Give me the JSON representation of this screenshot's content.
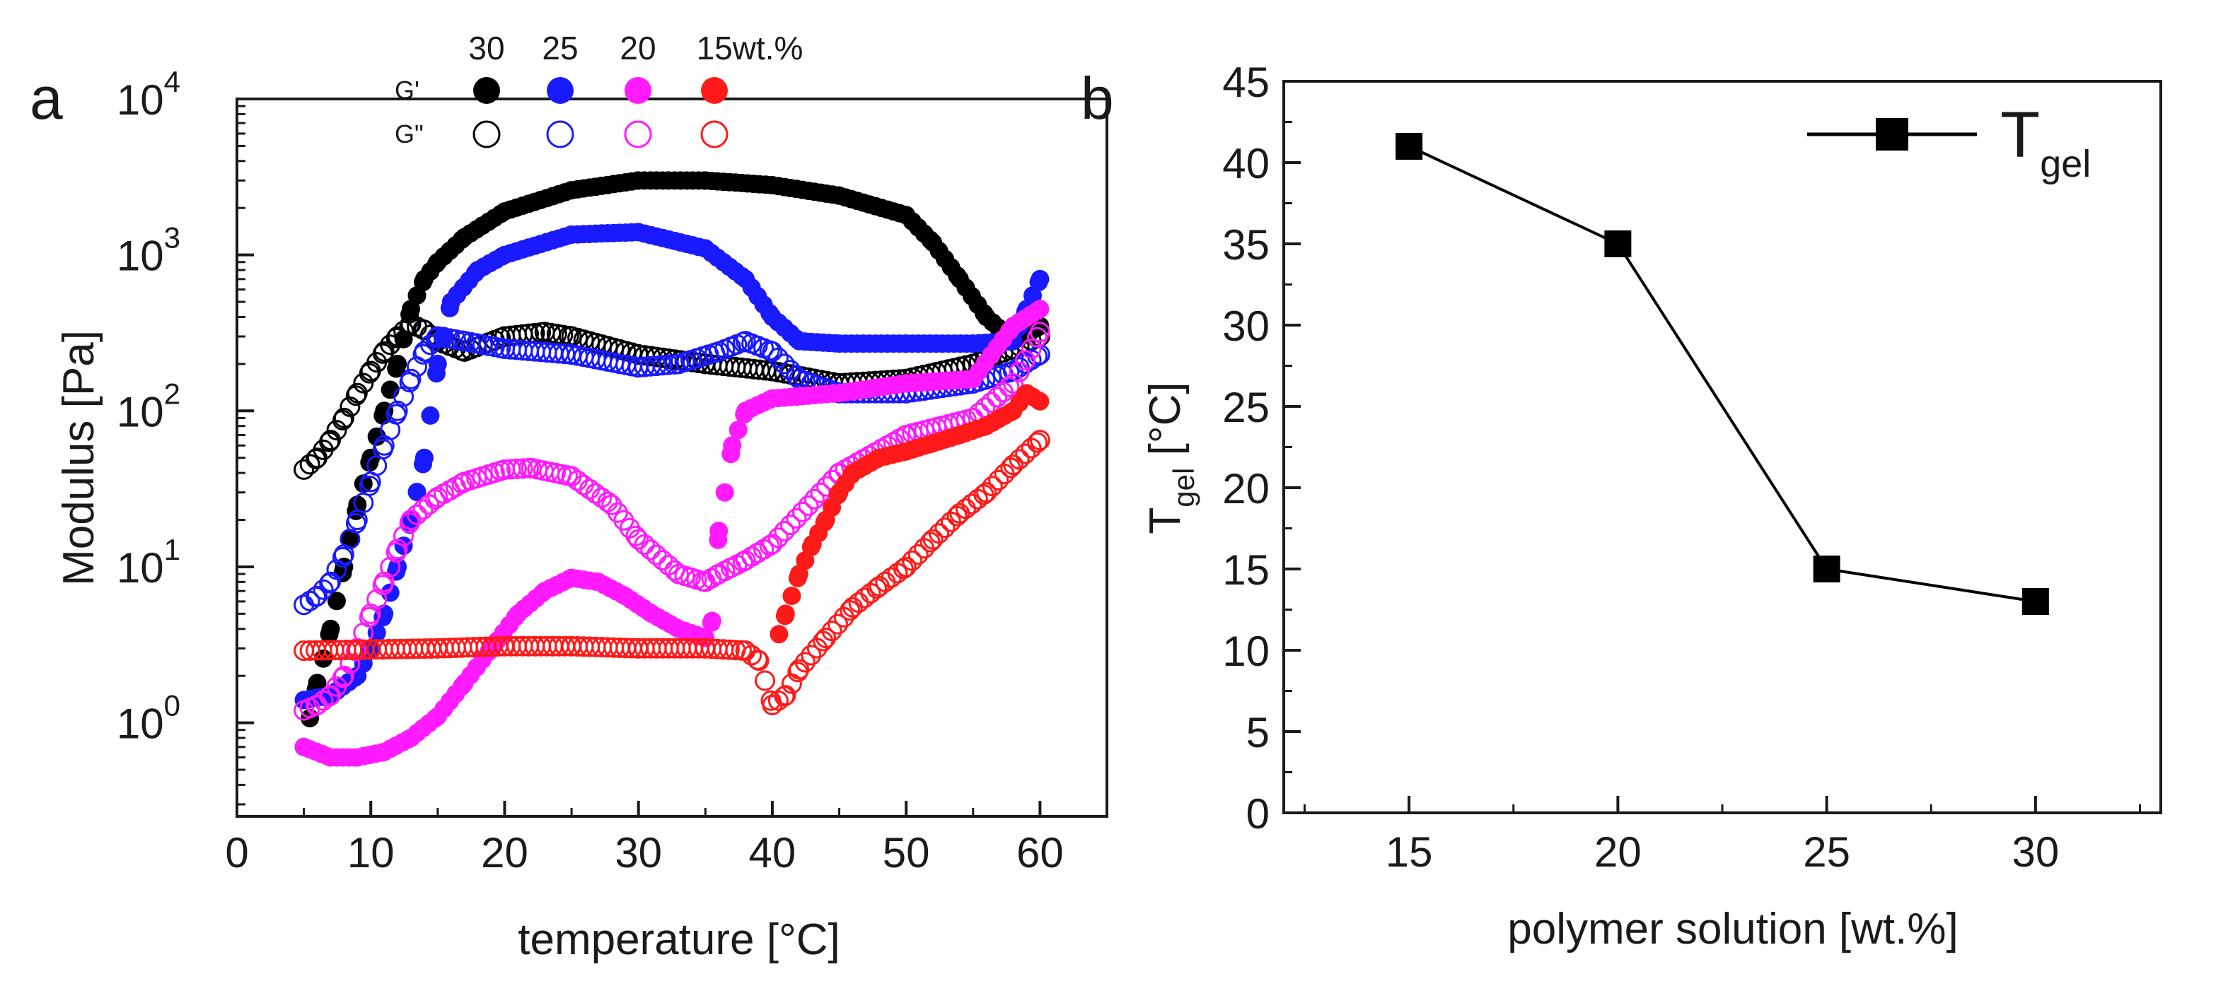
{
  "chart_data": [
    {
      "panel_label": "a",
      "type": "scatter",
      "xlabel": "temperature [°C]",
      "ylabel": "Modulus [Pa]",
      "xlim": [
        0,
        65
      ],
      "ylim_log10": [
        -0.6,
        4
      ],
      "xticks": [
        "0",
        "10",
        "20",
        "30",
        "40",
        "50",
        "60"
      ],
      "xtick_values": [
        0,
        10,
        20,
        30,
        40,
        50,
        60
      ],
      "yticks": [
        {
          "base": "10",
          "exp": "0",
          "value": 1
        },
        {
          "base": "10",
          "exp": "1",
          "value": 10
        },
        {
          "base": "10",
          "exp": "2",
          "value": 100
        },
        {
          "base": "10",
          "exp": "3",
          "value": 1000
        },
        {
          "base": "10",
          "exp": "4",
          "value": 10000
        }
      ],
      "legend": {
        "concentrations": [
          "30",
          "25",
          "20",
          "15wt.%"
        ],
        "rows": [
          "G'",
          "G\""
        ],
        "colors": [
          "#000000",
          "#1a1aff",
          "#ff1aff",
          "#ff1a1a"
        ]
      },
      "series": [
        {
          "name": "G' 30 wt.%",
          "color": "#000000",
          "filled": true,
          "x": [
            5,
            6,
            7,
            8,
            9,
            10,
            11,
            12,
            13,
            14,
            15,
            17,
            20,
            25,
            30,
            35,
            40,
            45,
            50,
            52,
            54,
            56,
            58,
            60
          ],
          "y": [
            0.7,
            1.8,
            4,
            10,
            25,
            50,
            100,
            200,
            450,
            700,
            900,
            1300,
            1900,
            2600,
            3000,
            3000,
            2800,
            2400,
            1800,
            1200,
            700,
            400,
            280,
            350
          ]
        },
        {
          "name": "G\" 30 wt.%",
          "color": "#000000",
          "filled": false,
          "x": [
            5,
            6,
            7,
            8,
            9,
            10,
            11,
            12,
            13,
            14,
            15,
            17,
            20,
            23,
            25,
            30,
            35,
            40,
            45,
            50,
            55,
            58,
            60
          ],
          "y": [
            42,
            50,
            65,
            90,
            130,
            180,
            240,
            300,
            360,
            330,
            280,
            240,
            300,
            320,
            300,
            230,
            200,
            180,
            150,
            160,
            200,
            250,
            300
          ]
        },
        {
          "name": "G' 25 wt.%",
          "color": "#1a1aff",
          "filled": true,
          "x": [
            5,
            7,
            9,
            10,
            11,
            12,
            13,
            14,
            15,
            16,
            18,
            20,
            25,
            30,
            35,
            38,
            40,
            42,
            45,
            50,
            55,
            58,
            59,
            60
          ],
          "y": [
            1.4,
            1.5,
            2,
            3,
            5,
            10,
            20,
            50,
            200,
            500,
            800,
            1000,
            1350,
            1400,
            1100,
            700,
            400,
            280,
            270,
            270,
            270,
            280,
            450,
            700
          ]
        },
        {
          "name": "G\" 25 wt.%",
          "color": "#1a1aff",
          "filled": false,
          "x": [
            5,
            6,
            7,
            8,
            9,
            10,
            11,
            12,
            13,
            14,
            15,
            17,
            20,
            25,
            30,
            33,
            36,
            38,
            40,
            42,
            45,
            50,
            55,
            58,
            60
          ],
          "y": [
            5.7,
            6.5,
            8,
            12,
            20,
            35,
            60,
            100,
            160,
            240,
            300,
            280,
            250,
            230,
            190,
            200,
            240,
            280,
            240,
            160,
            130,
            130,
            150,
            180,
            230
          ]
        },
        {
          "name": "G' 20 wt.%",
          "color": "#ff1aff",
          "filled": true,
          "x": [
            5,
            7,
            9,
            11,
            13,
            15,
            17,
            19,
            21,
            23,
            25,
            27,
            29,
            31,
            33,
            35,
            35.5,
            36,
            37,
            38,
            40,
            45,
            50,
            55,
            58,
            60
          ],
          "y": [
            0.7,
            0.6,
            0.6,
            0.65,
            0.8,
            1.1,
            1.8,
            3,
            5,
            7,
            8.5,
            8,
            6.5,
            5,
            4,
            3.5,
            4.5,
            17,
            60,
            100,
            120,
            130,
            150,
            160,
            350,
            450
          ]
        },
        {
          "name": "G\" 20 wt.%",
          "color": "#ff1aff",
          "filled": false,
          "x": [
            5,
            6,
            7,
            8,
            9,
            10,
            11,
            12,
            13,
            15,
            17,
            20,
            22,
            25,
            28,
            30,
            33,
            35,
            36,
            38,
            40,
            45,
            50,
            55,
            58,
            60
          ],
          "y": [
            1.2,
            1.3,
            1.5,
            2,
            3,
            5,
            8,
            13,
            20,
            28,
            35,
            42,
            43,
            38,
            25,
            15,
            9,
            8,
            9,
            11,
            14,
            40,
            70,
            90,
            150,
            320
          ]
        },
        {
          "name": "G' 15 wt.%",
          "color": "#ff1a1a",
          "filled": true,
          "x": [
            40.5,
            41,
            42,
            43,
            44,
            45,
            46,
            48,
            50,
            52,
            54,
            56,
            58,
            59,
            60
          ],
          "y": [
            3.7,
            5,
            9,
            14,
            20,
            30,
            40,
            50,
            55,
            62,
            70,
            80,
            100,
            130,
            115
          ]
        },
        {
          "name": "G\" 15 wt.%",
          "color": "#ff1a1a",
          "filled": false,
          "x": [
            5,
            10,
            15,
            20,
            25,
            30,
            35,
            38,
            39,
            40,
            41,
            42,
            44,
            46,
            48,
            50,
            52,
            54,
            56,
            58,
            60
          ],
          "y": [
            2.9,
            2.95,
            3,
            3.1,
            3.1,
            3,
            3,
            2.9,
            2.5,
            1.3,
            1.5,
            2.2,
            3.5,
            5.5,
            7.5,
            10,
            15,
            22,
            30,
            45,
            65
          ]
        }
      ]
    },
    {
      "panel_label": "b",
      "type": "line",
      "xlabel": "polymer solution [wt.%]",
      "ylabel_main": "T",
      "ylabel_sub": "gel",
      "ylabel_unit": " [°C]",
      "xlim": [
        12,
        33
      ],
      "ylim": [
        0,
        45
      ],
      "xticks": [
        "15",
        "20",
        "25",
        "30"
      ],
      "xtick_values": [
        15,
        20,
        25,
        30
      ],
      "yticks": [
        "0",
        "5",
        "10",
        "15",
        "20",
        "25",
        "30",
        "35",
        "40",
        "45"
      ],
      "ytick_values": [
        0,
        5,
        10,
        15,
        20,
        25,
        30,
        35,
        40,
        45
      ],
      "legend": {
        "main": "T",
        "sub": "gel",
        "location": "top-right"
      },
      "series": [
        {
          "name": "Tgel",
          "color": "#000000",
          "marker": "square",
          "x": [
            15,
            20,
            25,
            30
          ],
          "y": [
            41,
            35,
            15,
            13
          ]
        }
      ]
    }
  ]
}
